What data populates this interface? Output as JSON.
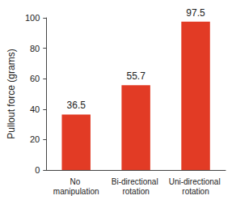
{
  "chart_data": {
    "type": "bar",
    "y_label": "Pullout force (grams)",
    "categories": [
      "No manipulation",
      "Bi-directional rotation",
      "Uni-directional rotation"
    ],
    "values": [
      36.5,
      55.7,
      97.5
    ],
    "color": "#e23b25",
    "ylim": [
      0,
      100
    ],
    "yticks": [
      0,
      20,
      40,
      60,
      80,
      100
    ],
    "grid": false,
    "data_labels": true
  }
}
